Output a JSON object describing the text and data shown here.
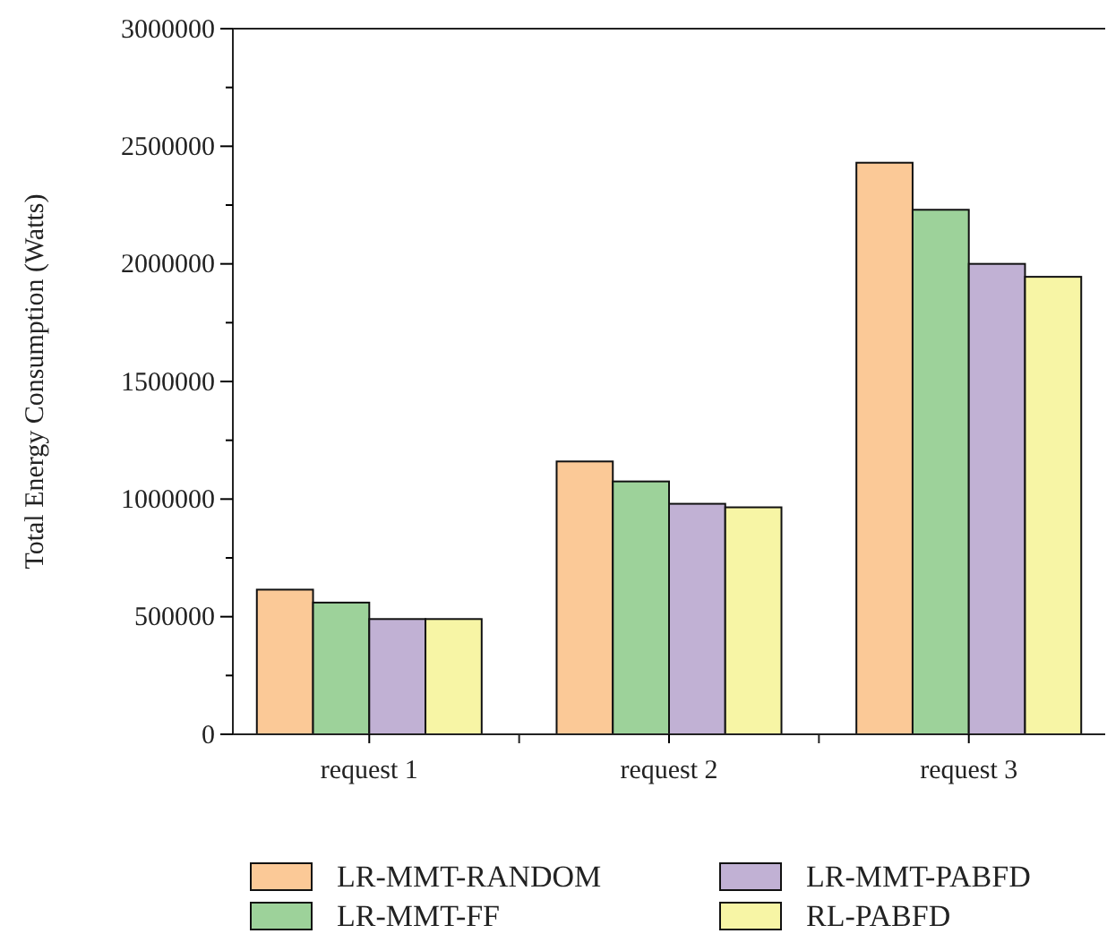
{
  "chart_data": {
    "type": "bar",
    "ylabel": "Total Energy Consumption (Watts)",
    "categories": [
      "request 1",
      "request 2",
      "request 3"
    ],
    "series": [
      {
        "name": "LR-MMT-RANDOM",
        "color": "#fbc997",
        "values": [
          615000,
          1160000,
          2430000
        ]
      },
      {
        "name": "LR-MMT-FF",
        "color": "#9dd29a",
        "values": [
          560000,
          1075000,
          2230000
        ]
      },
      {
        "name": "LR-MMT-PABFD",
        "color": "#c1b1d4",
        "values": [
          490000,
          980000,
          2000000
        ]
      },
      {
        "name": "RL-PABFD",
        "color": "#f7f5a5",
        "values": [
          490000,
          965000,
          1945000
        ]
      }
    ],
    "ylim": [
      0,
      3000000
    ],
    "yticks": [
      0,
      {
        "value": 250000,
        "label": null
      },
      500000,
      {
        "value": 750000,
        "label": null
      },
      1000000,
      {
        "value": 1250000,
        "label": null
      },
      1500000,
      {
        "value": 1750000,
        "label": null
      },
      2000000,
      {
        "value": 2250000,
        "label": null
      },
      2500000,
      {
        "value": 2750000,
        "label": null
      },
      3000000
    ],
    "legend": "bottom",
    "grid": false
  }
}
